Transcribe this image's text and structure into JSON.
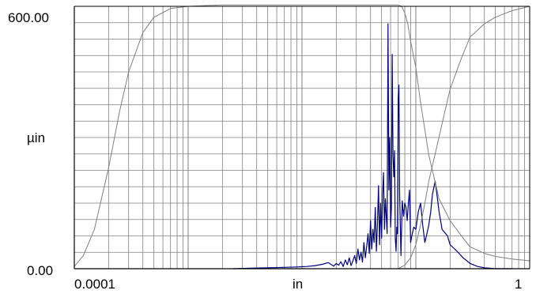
{
  "chart_data": {
    "type": "line",
    "title": "",
    "xlabel": "in",
    "ylabel": "µin",
    "x_scale": "log",
    "xlim": [
      0.0001,
      1
    ],
    "ylim": [
      0,
      600
    ],
    "grid": true,
    "legend": "none",
    "x_tick_labels": [
      "0.0001",
      "1"
    ],
    "y_tick_labels": [
      "600.00",
      "0.00"
    ],
    "colors": {
      "spectrum": "#000080",
      "filter": "#808080",
      "grid": "#808080",
      "axis": "#000000"
    },
    "series": [
      {
        "role": "spectrum",
        "x": [
          0.0025,
          0.0035,
          0.005,
          0.007,
          0.009,
          0.011,
          0.013,
          0.015,
          0.017,
          0.019,
          0.02,
          0.021,
          0.022,
          0.023,
          0.024,
          0.025,
          0.026,
          0.027,
          0.028,
          0.029,
          0.03,
          0.031,
          0.032,
          0.033,
          0.034,
          0.035,
          0.036,
          0.037,
          0.038,
          0.039,
          0.04,
          0.041,
          0.042,
          0.043,
          0.044,
          0.045,
          0.046,
          0.047,
          0.048,
          0.049,
          0.05,
          0.051,
          0.052,
          0.053,
          0.054,
          0.055,
          0.056,
          0.057,
          0.058,
          0.059,
          0.06,
          0.061,
          0.062,
          0.063,
          0.064,
          0.065,
          0.066,
          0.067,
          0.068,
          0.069,
          0.07,
          0.071,
          0.072,
          0.074,
          0.076,
          0.078,
          0.08,
          0.082,
          0.084,
          0.086,
          0.088,
          0.09,
          0.093,
          0.096,
          0.1,
          0.105,
          0.11,
          0.115,
          0.12,
          0.125,
          0.13,
          0.135,
          0.14,
          0.148,
          0.155,
          0.16,
          0.17,
          0.19,
          0.2,
          0.23,
          0.26,
          0.3,
          0.35,
          0.4,
          0.5,
          0.7
        ],
        "y": [
          0,
          1,
          2,
          3,
          4,
          5,
          7,
          10,
          14,
          6,
          12,
          8,
          16,
          5,
          20,
          9,
          25,
          7,
          18,
          30,
          12,
          45,
          20,
          38,
          15,
          60,
          25,
          50,
          80,
          35,
          110,
          45,
          90,
          60,
          140,
          40,
          100,
          190,
          55,
          150,
          70,
          170,
          220,
          90,
          160,
          120,
          80,
          560,
          180,
          300,
          95,
          140,
          490,
          260,
          210,
          270,
          70,
          40,
          95,
          80,
          390,
          420,
          170,
          30,
          155,
          120,
          150,
          140,
          110,
          150,
          180,
          60,
          80,
          95,
          90,
          130,
          150,
          100,
          60,
          80,
          100,
          130,
          170,
          200,
          160,
          130,
          90,
          75,
          55,
          40,
          25,
          12,
          5,
          2,
          0,
          0
        ]
      },
      {
        "role": "filter",
        "x": [
          0.0001,
          0.00012,
          0.00015,
          0.0002,
          0.00025,
          0.0003,
          0.0004,
          0.0005,
          0.0007,
          0.001,
          0.0015,
          0.002,
          0.003,
          0.005,
          0.01,
          0.02,
          0.05,
          0.07,
          0.075,
          0.08,
          0.085,
          0.09,
          0.1,
          0.11,
          0.13,
          0.16,
          0.2,
          0.26,
          0.3,
          0.4,
          0.5,
          0.7,
          1
        ],
        "y": [
          5,
          30,
          90,
          230,
          360,
          450,
          540,
          575,
          595,
          600,
          602,
          603,
          603,
          603,
          603,
          603,
          603,
          603,
          600,
          585,
          560,
          520,
          460,
          380,
          260,
          160,
          110,
          70,
          50,
          35,
          28,
          22,
          18
        ]
      },
      {
        "role": "filter",
        "x": [
          0.07,
          0.08,
          0.09,
          0.1,
          0.11,
          0.12,
          0.13,
          0.15,
          0.18,
          0.2,
          0.25,
          0.3,
          0.4,
          0.5,
          0.7,
          1
        ],
        "y": [
          0,
          8,
          25,
          55,
          100,
          150,
          200,
          270,
          360,
          410,
          480,
          530,
          560,
          575,
          590,
          600
        ]
      }
    ]
  }
}
